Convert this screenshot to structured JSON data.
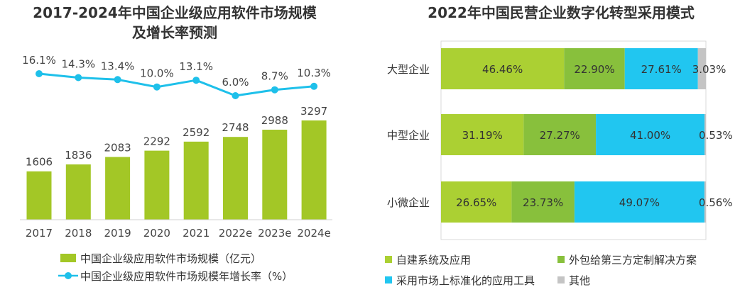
{
  "colors": {
    "bar_green": "#a3c726",
    "line_blue": "#1ec0ea",
    "seg_1": "#abd033",
    "seg_2": "#88c03c",
    "seg_3": "#21c6f0",
    "seg_4": "#c4c4c4"
  },
  "chart_data": [
    {
      "type": "bar",
      "title": "2017-2024年中国企业级应用软件市场规模",
      "title_line2": "及增长率预测",
      "categories": [
        "2017",
        "2018",
        "2019",
        "2020",
        "2021",
        "2022e",
        "2023e",
        "2024e"
      ],
      "series": [
        {
          "name": "中国企业级应用软件市场规模（亿元）",
          "type": "bar",
          "values": [
            1606,
            1836,
            2083,
            2292,
            2592,
            2748,
            2988,
            3297
          ],
          "labels": [
            "1606",
            "1836",
            "2083",
            "2292",
            "2592",
            "2748",
            "2988",
            "3297"
          ]
        },
        {
          "name": "中国企业级应用软件市场规模年增长率（%）",
          "type": "line",
          "values": [
            16.1,
            14.3,
            13.4,
            10.0,
            13.1,
            6.0,
            8.7,
            10.3
          ],
          "labels": [
            "16.1%",
            "14.3%",
            "13.4%",
            "10.0%",
            "13.1%",
            "6.0%",
            "8.7%",
            "10.3%"
          ]
        }
      ],
      "legend": "bottom"
    },
    {
      "type": "bar",
      "stacked": "percent",
      "orientation": "horizontal",
      "title": "2022年中国民营企业数字化转型采用模式",
      "categories": [
        "大型企业",
        "中型企业",
        "小微企业"
      ],
      "series": [
        {
          "name": "自建系统及应用",
          "values": [
            46.46,
            31.19,
            26.65
          ],
          "labels": [
            "46.46%",
            "31.19%",
            "26.65%"
          ]
        },
        {
          "name": "外包给第三方定制解决方案",
          "values": [
            22.9,
            27.27,
            23.73
          ],
          "labels": [
            "22.90%",
            "27.27%",
            "23.73%"
          ]
        },
        {
          "name": "采用市场上标准化的应用工具",
          "values": [
            27.61,
            41.0,
            49.07
          ],
          "labels": [
            "27.61%",
            "41.00%",
            "49.07%"
          ]
        },
        {
          "name": "其他",
          "values": [
            3.03,
            0.53,
            0.56
          ],
          "labels": [
            "3.03%",
            "0.53%",
            "0.56%"
          ]
        }
      ],
      "legend": "bottom"
    }
  ]
}
